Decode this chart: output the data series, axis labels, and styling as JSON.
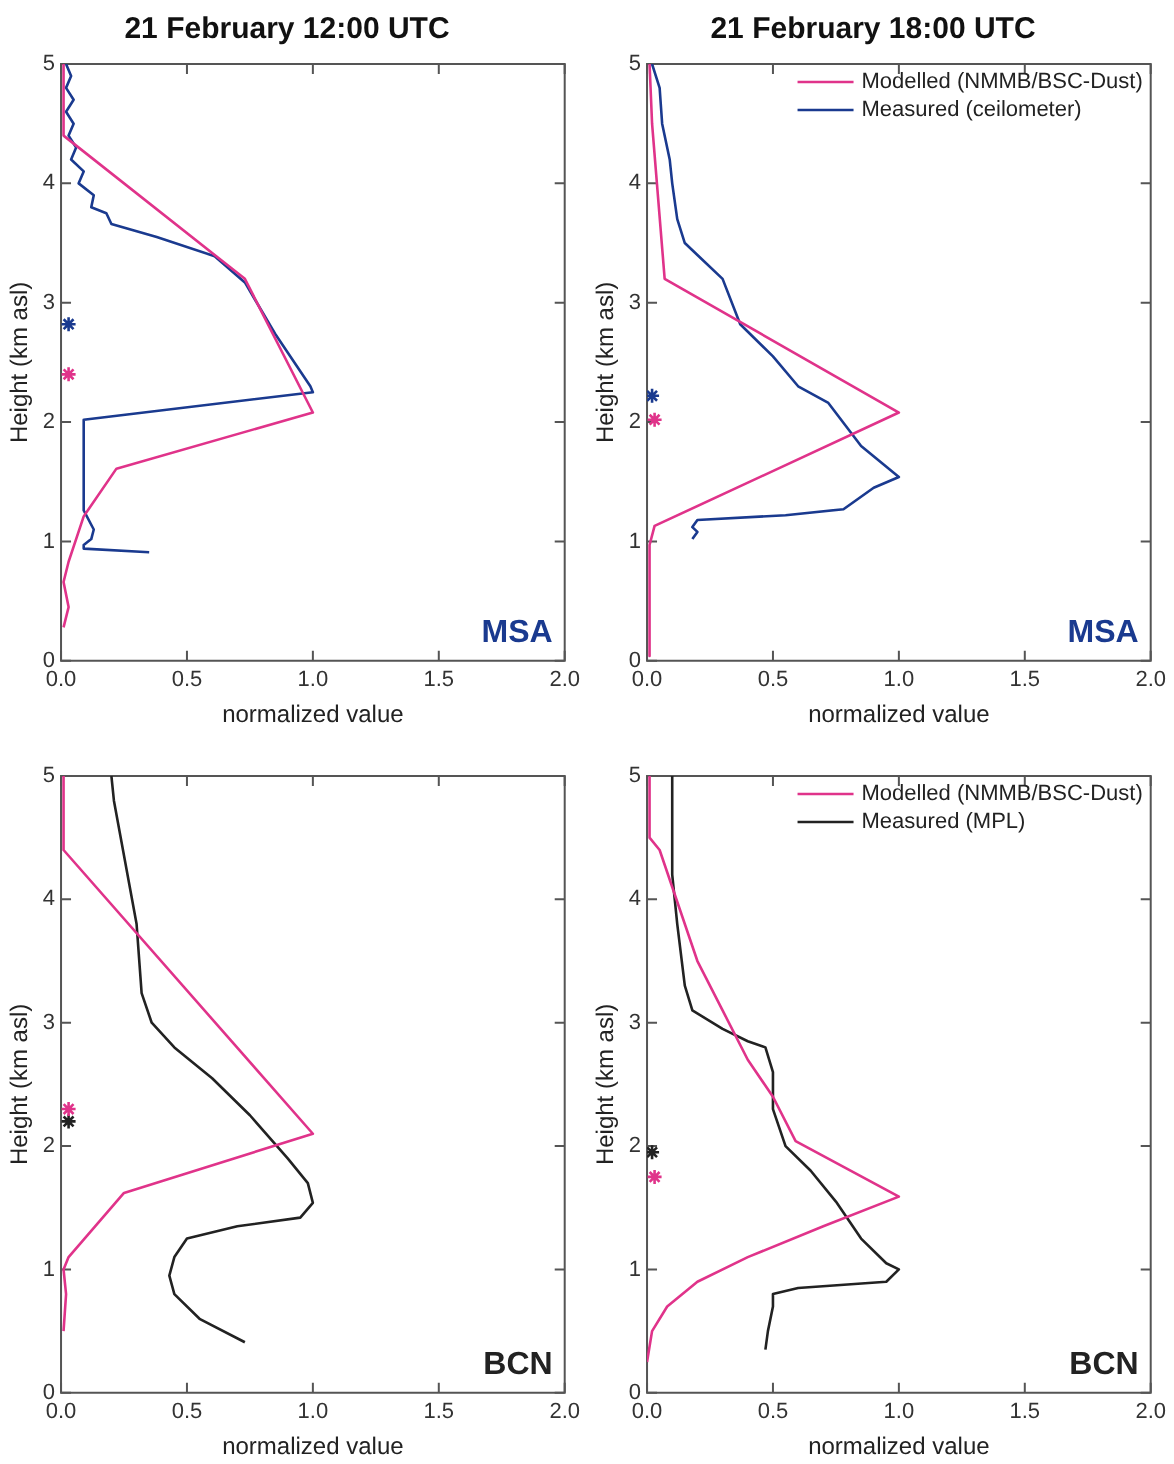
{
  "chart_data": [
    {
      "type": "line",
      "title": "21 February 12:00 UTC",
      "xlabel": "normalized value",
      "ylabel": "Height (km asl)",
      "annotations": [
        "MSA"
      ],
      "xlim": [
        0,
        2
      ],
      "ylim": [
        0,
        5
      ],
      "xticks": [
        {
          "value": 0,
          "label": "0.0"
        },
        {
          "value": 0.5,
          "label": "0.5"
        },
        {
          "value": 1,
          "label": "1.0"
        },
        {
          "value": 1.5,
          "label": "1.5"
        },
        {
          "value": 2,
          "label": "2.0"
        }
      ],
      "yticks": [
        0,
        1,
        2,
        3,
        4,
        5
      ],
      "grid": false,
      "legend": false,
      "series": [
        {
          "color": "#e0338a",
          "marker": "none",
          "x": [
            0.01,
            0.01,
            0.73,
            1.0,
            0.22,
            0.09,
            0.03,
            0.01,
            0.03,
            0.01
          ],
          "values": [
            5,
            4.4,
            3.2,
            2.08,
            1.61,
            1.21,
            0.83,
            0.66,
            0.45,
            0.28
          ]
        },
        {
          "color": "#1a3a8f",
          "marker": "none",
          "x": [
            0.02,
            0.04,
            0.02,
            0.05,
            0.02,
            0.05,
            0.03,
            0.06,
            0.04,
            0.09,
            0.07,
            0.13,
            0.12,
            0.18,
            0.2,
            0.38,
            0.61,
            0.73,
            0.85,
            0.99,
            1.0,
            0.09,
            0.09,
            0.13,
            0.12,
            0.09,
            0.09,
            0.35
          ],
          "values": [
            5,
            4.9,
            4.8,
            4.7,
            4.6,
            4.5,
            4.4,
            4.3,
            4.2,
            4.1,
            4.0,
            3.9,
            3.8,
            3.75,
            3.66,
            3.55,
            3.39,
            3.17,
            2.74,
            2.3,
            2.25,
            2.02,
            1.26,
            1.1,
            1.02,
            0.97,
            0.94,
            0.91
          ]
        },
        {
          "type": "scatter",
          "color": "#1a3a8f",
          "marker": "cross",
          "x": [
            0.03
          ],
          "values": [
            2.82
          ]
        },
        {
          "type": "scatter",
          "color": "#e0338a",
          "marker": "cross",
          "x": [
            0.03
          ],
          "values": [
            2.4
          ]
        }
      ]
    },
    {
      "type": "line",
      "title": "21 February 18:00 UTC",
      "xlabel": "normalized value",
      "ylabel": "Height (km asl)",
      "annotations": [
        "MSA"
      ],
      "xlim": [
        0,
        2
      ],
      "ylim": [
        0,
        5
      ],
      "xticks": [
        {
          "value": 0,
          "label": "0.0"
        },
        {
          "value": 0.5,
          "label": "0.5"
        },
        {
          "value": 1,
          "label": "1.0"
        },
        {
          "value": 1.5,
          "label": "1.5"
        },
        {
          "value": 2,
          "label": "2.0"
        }
      ],
      "yticks": [
        0,
        1,
        2,
        3,
        4,
        5
      ],
      "grid": false,
      "legend": "top right",
      "series": [
        {
          "name": "Modelled (NMMB/BSC-Dust)",
          "color": "#e0338a",
          "marker": "none",
          "x": [
            0.01,
            0.02,
            0.07,
            1.0,
            0.03,
            0.01,
            0.01
          ],
          "values": [
            5,
            4.5,
            3.2,
            2.08,
            1.13,
            0.97,
            0.04
          ]
        },
        {
          "name": "Measured (ceilometer)",
          "color": "#1a3a8f",
          "marker": "none",
          "x": [
            0.02,
            0.05,
            0.06,
            0.09,
            0.1,
            0.12,
            0.15,
            0.2,
            0.3,
            0.37,
            0.5,
            0.6,
            0.72,
            0.85,
            1.0,
            0.9,
            0.78,
            0.55,
            0.2,
            0.18,
            0.2,
            0.18
          ],
          "values": [
            5,
            4.8,
            4.5,
            4.2,
            4.0,
            3.7,
            3.5,
            3.4,
            3.2,
            2.82,
            2.55,
            2.3,
            2.16,
            1.8,
            1.54,
            1.45,
            1.27,
            1.22,
            1.18,
            1.12,
            1.08,
            1.02
          ]
        },
        {
          "type": "scatter",
          "color": "#1a3a8f",
          "marker": "cross",
          "x": [
            0.02
          ],
          "values": [
            2.22
          ]
        },
        {
          "type": "scatter",
          "color": "#e0338a",
          "marker": "cross",
          "x": [
            0.03
          ],
          "values": [
            2.02
          ]
        }
      ]
    },
    {
      "type": "line",
      "xlabel": "normalized value",
      "ylabel": "Height (km asl)",
      "annotations": [
        "BCN"
      ],
      "xlim": [
        0,
        2
      ],
      "ylim": [
        0,
        5
      ],
      "xticks": [
        {
          "value": 0,
          "label": "0.0"
        },
        {
          "value": 0.5,
          "label": "0.5"
        },
        {
          "value": 1,
          "label": "1.0"
        },
        {
          "value": 1.5,
          "label": "1.5"
        },
        {
          "value": 2,
          "label": "2.0"
        }
      ],
      "yticks": [
        0,
        1,
        2,
        3,
        4,
        5
      ],
      "grid": false,
      "legend": false,
      "series": [
        {
          "color": "#e0338a",
          "marker": "none",
          "x": [
            0.01,
            0.01,
            1.0,
            0.25,
            0.03,
            0.01,
            0.02,
            0.01
          ],
          "values": [
            5,
            4.4,
            2.1,
            1.62,
            1.1,
            1.0,
            0.8,
            0.5
          ]
        },
        {
          "color": "#222222",
          "marker": "none",
          "x": [
            0.2,
            0.21,
            0.3,
            0.32,
            0.36,
            0.45,
            0.6,
            0.75,
            0.9,
            0.98,
            1.0,
            0.95,
            0.7,
            0.5,
            0.45,
            0.43,
            0.45,
            0.55,
            0.73
          ],
          "values": [
            5,
            4.8,
            3.8,
            3.24,
            3.0,
            2.8,
            2.55,
            2.25,
            1.9,
            1.7,
            1.54,
            1.42,
            1.35,
            1.25,
            1.1,
            0.95,
            0.8,
            0.6,
            0.41
          ]
        },
        {
          "type": "scatter",
          "color": "#e0338a",
          "marker": "cross",
          "x": [
            0.03
          ],
          "values": [
            2.3
          ]
        },
        {
          "type": "scatter",
          "color": "#222222",
          "marker": "cross",
          "x": [
            0.03
          ],
          "values": [
            2.2
          ]
        }
      ]
    },
    {
      "type": "line",
      "xlabel": "normalized value",
      "ylabel": "Height (km asl)",
      "annotations": [
        "BCN"
      ],
      "xlim": [
        0,
        2
      ],
      "ylim": [
        0,
        5
      ],
      "xticks": [
        {
          "value": 0,
          "label": "0.0"
        },
        {
          "value": 0.5,
          "label": "0.5"
        },
        {
          "value": 1,
          "label": "1.0"
        },
        {
          "value": 1.5,
          "label": "1.5"
        },
        {
          "value": 2,
          "label": "2.0"
        }
      ],
      "yticks": [
        0,
        1,
        2,
        3,
        4,
        5
      ],
      "grid": false,
      "legend": "top right",
      "series": [
        {
          "name": "Modelled (NMMB/BSC-Dust)",
          "color": "#e0338a",
          "marker": "none",
          "x": [
            0.01,
            0.01,
            0.05,
            0.1,
            0.2,
            0.3,
            0.4,
            0.5,
            0.59,
            1.0,
            0.7,
            0.4,
            0.2,
            0.08,
            0.02,
            0
          ],
          "values": [
            5,
            4.5,
            4.4,
            4.1,
            3.5,
            3.1,
            2.7,
            2.4,
            2.04,
            1.59,
            1.35,
            1.1,
            0.9,
            0.7,
            0.5,
            0.25
          ]
        },
        {
          "name": "Measured (MPL)",
          "color": "#222222",
          "marker": "none",
          "x": [
            0.1,
            0.1,
            0.12,
            0.15,
            0.18,
            0.3,
            0.4,
            0.47,
            0.5,
            0.5,
            0.55,
            0.65,
            0.75,
            0.85,
            0.95,
            1.0,
            0.95,
            0.6,
            0.5,
            0.5,
            0.48,
            0.47
          ],
          "values": [
            5,
            4.2,
            3.8,
            3.3,
            3.1,
            2.95,
            2.85,
            2.8,
            2.6,
            2.3,
            2.0,
            1.8,
            1.55,
            1.25,
            1.05,
            1.0,
            0.9,
            0.85,
            0.8,
            0.7,
            0.5,
            0.35
          ]
        },
        {
          "type": "scatter",
          "color": "#222222",
          "marker": "cross",
          "x": [
            0.02
          ],
          "values": [
            1.95
          ]
        },
        {
          "type": "scatter",
          "color": "#e0338a",
          "marker": "cross",
          "x": [
            0.03
          ],
          "values": [
            1.75
          ]
        }
      ]
    }
  ]
}
